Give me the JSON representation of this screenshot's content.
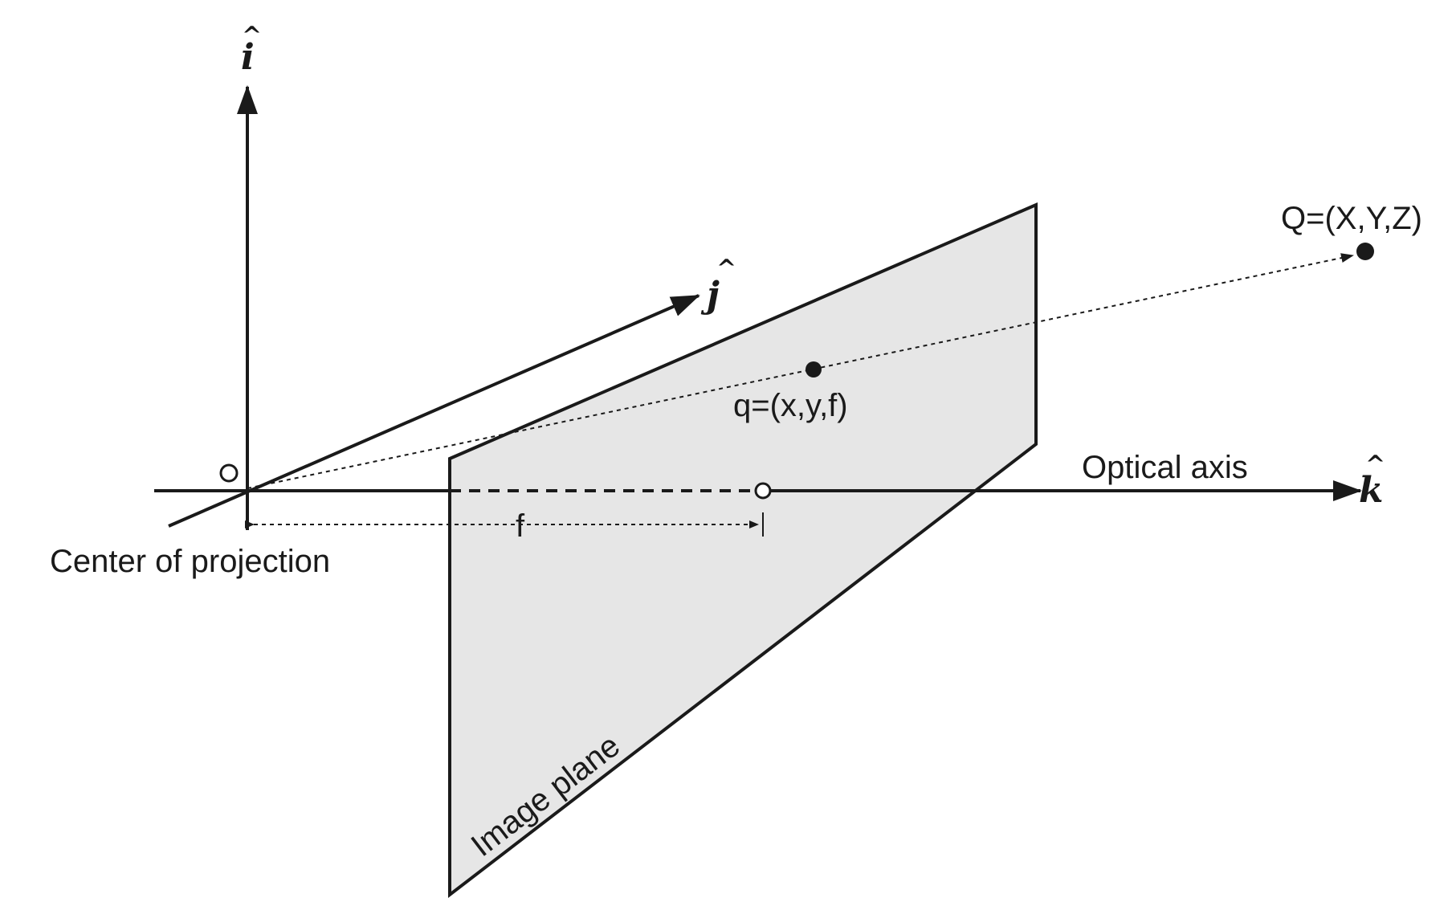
{
  "labels": {
    "i_axis": "i",
    "i_hat": "^",
    "j_axis": "j",
    "j_hat": "^",
    "k_axis": "k",
    "k_hat": "^",
    "point_Q": "Q=(X,Y,Z)",
    "point_q": "q=(x,y,f)",
    "optical_axis": "Optical axis",
    "focal_length": "f",
    "center_of_projection": "Center of projection",
    "image_plane": "Image plane"
  },
  "colors": {
    "stroke": "#1a1a1a",
    "plane_fill": "#e6e6e6",
    "background": "#ffffff"
  }
}
